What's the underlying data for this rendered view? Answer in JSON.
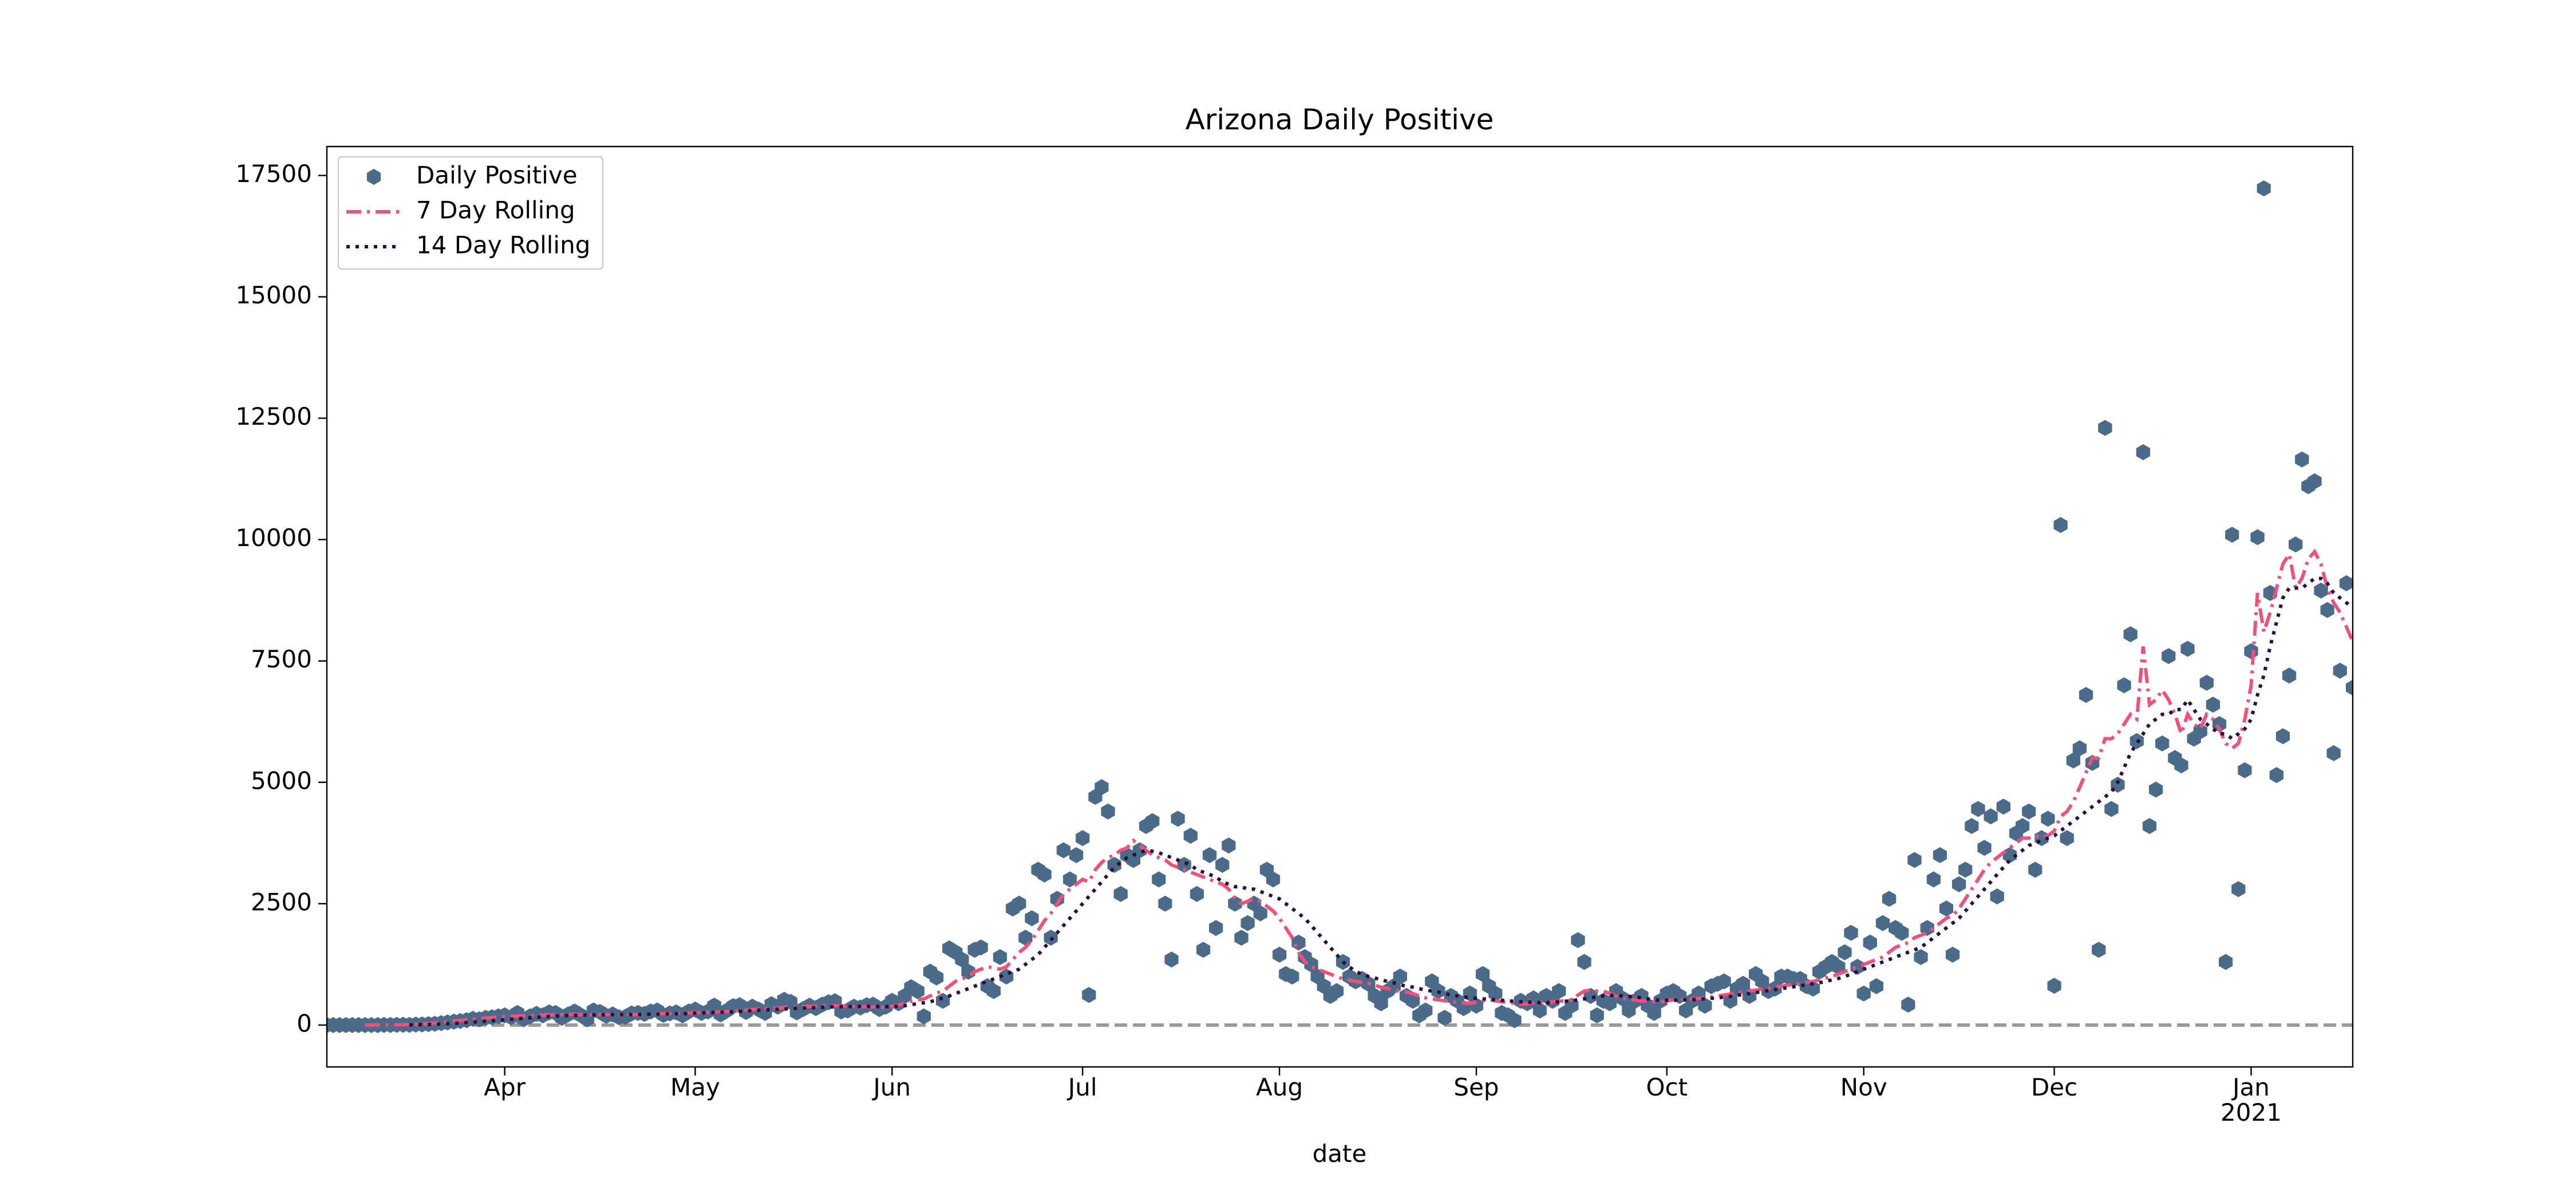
{
  "chart_data": {
    "type": "line",
    "title": "Arizona Daily Positive",
    "xlabel": "date",
    "xlim": [
      0,
      319
    ],
    "ylim": [
      -862,
      18096
    ],
    "xticks": [
      {
        "value": 28,
        "label": "Apr"
      },
      {
        "value": 58,
        "label": "May"
      },
      {
        "value": 89,
        "label": "Jun"
      },
      {
        "value": 119,
        "label": "Jul"
      },
      {
        "value": 150,
        "label": "Aug"
      },
      {
        "value": 181,
        "label": "Sep"
      },
      {
        "value": 211,
        "label": "Oct"
      },
      {
        "value": 242,
        "label": "Nov"
      },
      {
        "value": 272,
        "label": "Dec"
      },
      {
        "value": 303,
        "label": "Jan",
        "label2": "2021"
      }
    ],
    "yticks": [
      0,
      2500,
      5000,
      7500,
      10000,
      12500,
      15000,
      17500
    ],
    "legend": "upper left",
    "reference_line": {
      "value": 0,
      "color": "#999999"
    },
    "x": [
      0,
      1,
      2,
      3,
      4,
      5,
      6,
      7,
      8,
      9,
      10,
      11,
      12,
      13,
      14,
      15,
      16,
      17,
      18,
      19,
      20,
      21,
      22,
      23,
      24,
      25,
      26,
      27,
      28,
      29,
      30,
      31,
      32,
      33,
      34,
      35,
      36,
      37,
      38,
      39,
      40,
      41,
      42,
      43,
      44,
      45,
      46,
      47,
      48,
      49,
      50,
      51,
      52,
      53,
      54,
      55,
      56,
      57,
      58,
      59,
      60,
      61,
      62,
      63,
      64,
      65,
      66,
      67,
      68,
      69,
      70,
      71,
      72,
      73,
      74,
      75,
      76,
      77,
      78,
      79,
      80,
      81,
      82,
      83,
      84,
      85,
      86,
      87,
      88,
      89,
      90,
      91,
      92,
      93,
      94,
      95,
      96,
      97,
      98,
      99,
      100,
      101,
      102,
      103,
      104,
      105,
      106,
      107,
      108,
      109,
      110,
      111,
      112,
      113,
      114,
      115,
      116,
      117,
      118,
      119,
      120,
      121,
      122,
      123,
      124,
      125,
      126,
      127,
      128,
      129,
      130,
      131,
      132,
      133,
      134,
      135,
      136,
      137,
      138,
      139,
      140,
      141,
      142,
      143,
      144,
      145,
      146,
      147,
      148,
      149,
      150,
      151,
      152,
      153,
      154,
      155,
      156,
      157,
      158,
      159,
      160,
      161,
      162,
      163,
      164,
      165,
      166,
      167,
      168,
      169,
      170,
      171,
      172,
      173,
      174,
      175,
      176,
      177,
      178,
      179,
      180,
      181,
      182,
      183,
      184,
      185,
      186,
      187,
      188,
      189,
      190,
      191,
      192,
      193,
      194,
      195,
      196,
      197,
      198,
      199,
      200,
      201,
      202,
      203,
      204,
      205,
      206,
      207,
      208,
      209,
      210,
      211,
      212,
      213,
      214,
      215,
      216,
      217,
      218,
      219,
      220,
      221,
      222,
      223,
      224,
      225,
      226,
      227,
      228,
      229,
      230,
      231,
      232,
      233,
      234,
      235,
      236,
      237,
      238,
      239,
      240,
      241,
      242,
      243,
      244,
      245,
      246,
      247,
      248,
      249,
      250,
      251,
      252,
      253,
      254,
      255,
      256,
      257,
      258,
      259,
      260,
      261,
      262,
      263,
      264,
      265,
      266,
      267,
      268,
      269,
      270,
      271,
      272,
      273,
      274,
      275,
      276,
      277,
      278,
      279,
      280,
      281,
      282,
      283,
      284,
      285,
      286,
      287,
      288,
      289,
      290,
      291,
      292,
      293,
      294,
      295,
      296,
      297,
      298,
      299,
      300,
      301,
      302,
      303,
      304,
      305,
      306,
      307,
      308,
      309,
      310,
      311,
      312,
      313,
      314,
      315,
      316,
      317,
      318,
      319
    ],
    "series": [
      {
        "name": "Daily Positive",
        "color": "#4c6b8a",
        "marker": "hexagon",
        "linestyle": "none",
        "values": [
          0,
          0,
          0,
          0,
          0,
          0,
          0,
          0,
          0,
          3,
          2,
          4,
          6,
          5,
          10,
          14,
          20,
          27,
          40,
          55,
          70,
          85,
          100,
          130,
          120,
          150,
          160,
          180,
          200,
          160,
          250,
          120,
          180,
          230,
          200,
          260,
          250,
          150,
          220,
          280,
          200,
          120,
          300,
          270,
          190,
          220,
          160,
          170,
          240,
          250,
          230,
          280,
          300,
          210,
          240,
          260,
          200,
          280,
          320,
          250,
          280,
          400,
          220,
          300,
          390,
          410,
          270,
          380,
          320,
          250,
          430,
          380,
          520,
          480,
          260,
          330,
          400,
          350,
          420,
          470,
          490,
          280,
          300,
          380,
          360,
          410,
          420,
          330,
          380,
          500,
          450,
          600,
          780,
          700,
          180,
          1100,
          980,
          500,
          1580,
          1500,
          1350,
          1100,
          1550,
          1600,
          800,
          700,
          1400,
          1000,
          2400,
          2500,
          1800,
          2200,
          3200,
          3100,
          1800,
          2600,
          3600,
          3000,
          3500,
          3850,
          620,
          4700,
          4900,
          4400,
          3300,
          2700,
          3500,
          3400,
          3600,
          4100,
          4200,
          3000,
          2500,
          1350,
          4250,
          3300,
          3900,
          2700,
          1550,
          3500,
          2000,
          3300,
          3700,
          2500,
          1800,
          2100,
          2500,
          2300,
          3200,
          3000,
          1450,
          1050,
          1000,
          1700,
          1400,
          1250,
          1000,
          800,
          600,
          700,
          1300,
          1000,
          900,
          950,
          850,
          600,
          450,
          700,
          800,
          1000,
          600,
          500,
          200,
          300,
          900,
          700,
          150,
          600,
          500,
          350,
          650,
          400,
          1050,
          800,
          650,
          250,
          200,
          100,
          500,
          450,
          550,
          300,
          600,
          500,
          700,
          250,
          400,
          1750,
          1300,
          600,
          200,
          500,
          450,
          700,
          550,
          300,
          500,
          600,
          400,
          250,
          500,
          650,
          700,
          600,
          300,
          500,
          650,
          400,
          800,
          850,
          900,
          500,
          750,
          850,
          600,
          1050,
          900,
          700,
          750,
          1000,
          1000,
          950,
          950,
          800,
          750,
          1100,
          1200,
          1300,
          1200,
          1500,
          1900,
          1200,
          650,
          1700,
          800,
          2100,
          2600,
          2000,
          1900,
          420,
          3400,
          1400,
          2000,
          3000,
          3500,
          2400,
          1450,
          2900,
          3200,
          4100,
          4450,
          3650,
          4300,
          2650,
          4500,
          3500,
          3950,
          4100,
          4400,
          3200,
          3850,
          4250,
          810,
          10300,
          3850,
          5450,
          5700,
          6800,
          5400,
          1550,
          12300,
          4450,
          4950,
          7000,
          8050,
          5850,
          11800,
          4100,
          4850,
          5800,
          7600,
          5500,
          5350,
          7750,
          5900,
          6050,
          7050,
          6600,
          6200,
          1300,
          10100,
          2800,
          5250,
          7700,
          10050,
          17234,
          8900,
          5150,
          5950,
          7200,
          9900,
          11650,
          11100,
          11200,
          8950,
          8550,
          5600,
          7300,
          9100,
          6950
        ]
      },
      {
        "name": "7 Day Rolling",
        "color": "#f0517a",
        "marker": "none",
        "linestyle": "dashdot",
        "values": [
          null,
          null,
          null,
          null,
          null,
          null,
          0,
          1,
          2,
          3,
          4,
          6,
          8,
          12,
          17,
          24,
          33,
          44,
          56,
          68,
          82,
          96,
          108,
          122,
          132,
          144,
          155,
          165,
          175,
          180,
          185,
          190,
          195,
          200,
          205,
          210,
          210,
          215,
          215,
          220,
          215,
          210,
          210,
          215,
          220,
          215,
          210,
          210,
          215,
          220,
          225,
          230,
          235,
          235,
          240,
          245,
          245,
          250,
          255,
          260,
          265,
          270,
          275,
          280,
          290,
          300,
          310,
          320,
          330,
          335,
          340,
          350,
          360,
          370,
          375,
          380,
          385,
          390,
          395,
          400,
          400,
          395,
          390,
          385,
          380,
          380,
          375,
          370,
          370,
          390,
          410,
          450,
          490,
          520,
          540,
          600,
          660,
          700,
          800,
          900,
          950,
          1000,
          1100,
          1150,
          1200,
          1180,
          1150,
          1200,
          1350,
          1500,
          1600,
          1750,
          1950,
          2150,
          2300,
          2500,
          2700,
          2800,
          2900,
          3000,
          2950,
          3200,
          3350,
          3450,
          3500,
          3600,
          3650,
          3800,
          3700,
          3600,
          3500,
          3450,
          3400,
          3300,
          3250,
          3200,
          3150,
          3100,
          3050,
          3000,
          2950,
          2900,
          2800,
          2600,
          2500,
          2550,
          2600,
          2550,
          2450,
          2350,
          2200,
          2000,
          1800,
          1500,
          1300,
          1200,
          1150,
          1100,
          1050,
          1000,
          950,
          930,
          900,
          880,
          860,
          820,
          780,
          750,
          720,
          700,
          680,
          650,
          600,
          560,
          540,
          520,
          500,
          480,
          470,
          460,
          450,
          470,
          500,
          520,
          500,
          480,
          470,
          450,
          430,
          440,
          460,
          460,
          470,
          480,
          490,
          500,
          520,
          620,
          700,
          720,
          700,
          700,
          650,
          600,
          560,
          520,
          520,
          500,
          490,
          480,
          480,
          500,
          520,
          530,
          530,
          540,
          550,
          560,
          580,
          600,
          620,
          640,
          660,
          680,
          700,
          720,
          740,
          760,
          780,
          800,
          820,
          840,
          860,
          880,
          900,
          930,
          970,
          1000,
          1050,
          1100,
          1150,
          1200,
          1250,
          1300,
          1350,
          1400,
          1500,
          1600,
          1650,
          1700,
          1800,
          1850,
          1900,
          2000,
          2100,
          2200,
          2250,
          2400,
          2600,
          2800,
          3000,
          3200,
          3350,
          3450,
          3550,
          3650,
          3750,
          3850,
          3850,
          3900,
          3850,
          3900,
          4000,
          4300,
          4400,
          4600,
          4900,
          5200,
          5500,
          5500,
          5900,
          5900,
          6000,
          6200,
          6400,
          6300,
          7800,
          6600,
          6700,
          6900,
          6700,
          6400,
          6000,
          6400,
          6200,
          6100,
          6400,
          6300,
          6100,
          5800,
          5700,
          5800,
          6300,
          7000,
          8900,
          8100,
          8500,
          9000,
          9500,
          9700,
          9000,
          9200,
          9600,
          9750,
          9500,
          9000,
          8700,
          8500,
          8200,
          7900
        ]
      },
      {
        "name": "14 Day Rolling",
        "color": "#2b0f3a",
        "marker": "none",
        "linestyle": "dotted",
        "values": [
          null,
          null,
          null,
          null,
          null,
          null,
          null,
          null,
          null,
          null,
          null,
          null,
          null,
          5,
          7,
          9,
          12,
          16,
          21,
          28,
          35,
          43,
          52,
          61,
          70,
          80,
          90,
          100,
          110,
          120,
          130,
          140,
          150,
          160,
          170,
          180,
          185,
          190,
          195,
          200,
          205,
          205,
          210,
          210,
          215,
          215,
          215,
          215,
          215,
          220,
          220,
          225,
          225,
          230,
          230,
          235,
          235,
          240,
          245,
          250,
          255,
          260,
          265,
          270,
          275,
          280,
          290,
          300,
          305,
          310,
          320,
          325,
          330,
          340,
          345,
          350,
          355,
          360,
          365,
          370,
          375,
          380,
          380,
          385,
          385,
          385,
          385,
          380,
          380,
          385,
          390,
          400,
          420,
          440,
          460,
          480,
          520,
          560,
          600,
          650,
          700,
          750,
          800,
          850,
          900,
          950,
          1000,
          1050,
          1100,
          1150,
          1250,
          1350,
          1450,
          1600,
          1750,
          1900,
          2050,
          2200,
          2350,
          2500,
          2650,
          2800,
          2950,
          3100,
          3250,
          3350,
          3450,
          3500,
          3550,
          3600,
          3580,
          3550,
          3500,
          3450,
          3400,
          3350,
          3300,
          3200,
          3150,
          3100,
          3050,
          2950,
          2900,
          2850,
          2850,
          2800,
          2800,
          2750,
          2700,
          2650,
          2600,
          2500,
          2400,
          2300,
          2200,
          2050,
          1900,
          1750,
          1600,
          1450,
          1300,
          1200,
          1100,
          1050,
          1000,
          970,
          930,
          900,
          870,
          830,
          800,
          780,
          750,
          720,
          700,
          680,
          650,
          620,
          600,
          580,
          560,
          550,
          540,
          530,
          520,
          510,
          500,
          490,
          480,
          470,
          470,
          460,
          460,
          470,
          480,
          490,
          500,
          520,
          540,
          560,
          580,
          600,
          610,
          610,
          600,
          590,
          580,
          560,
          540,
          520,
          510,
          510,
          510,
          515,
          520,
          525,
          530,
          540,
          550,
          560,
          575,
          590,
          610,
          630,
          650,
          670,
          690,
          710,
          730,
          750,
          770,
          790,
          810,
          830,
          850,
          870,
          900,
          930,
          960,
          1000,
          1050,
          1100,
          1150,
          1200,
          1250,
          1300,
          1350,
          1400,
          1450,
          1500,
          1550,
          1600,
          1700,
          1800,
          1900,
          2000,
          2100,
          2200,
          2350,
          2500,
          2650,
          2800,
          2950,
          3100,
          3250,
          3400,
          3500,
          3600,
          3700,
          3750,
          3800,
          3850,
          3900,
          4000,
          4100,
          4200,
          4300,
          4400,
          4500,
          4600,
          4700,
          4800,
          5000,
          5300,
          5600,
          5800,
          6000,
          6200,
          6300,
          6400,
          6400,
          6500,
          6500,
          6700,
          6500,
          6300,
          6200,
          6100,
          6000,
          6000,
          5900,
          6000,
          6100,
          6300,
          6800,
          7200,
          7800,
          8300,
          8800,
          9000,
          9000,
          9000,
          9100,
          9200,
          9200,
          9100,
          8900,
          8800,
          8700,
          8600
        ]
      }
    ]
  }
}
